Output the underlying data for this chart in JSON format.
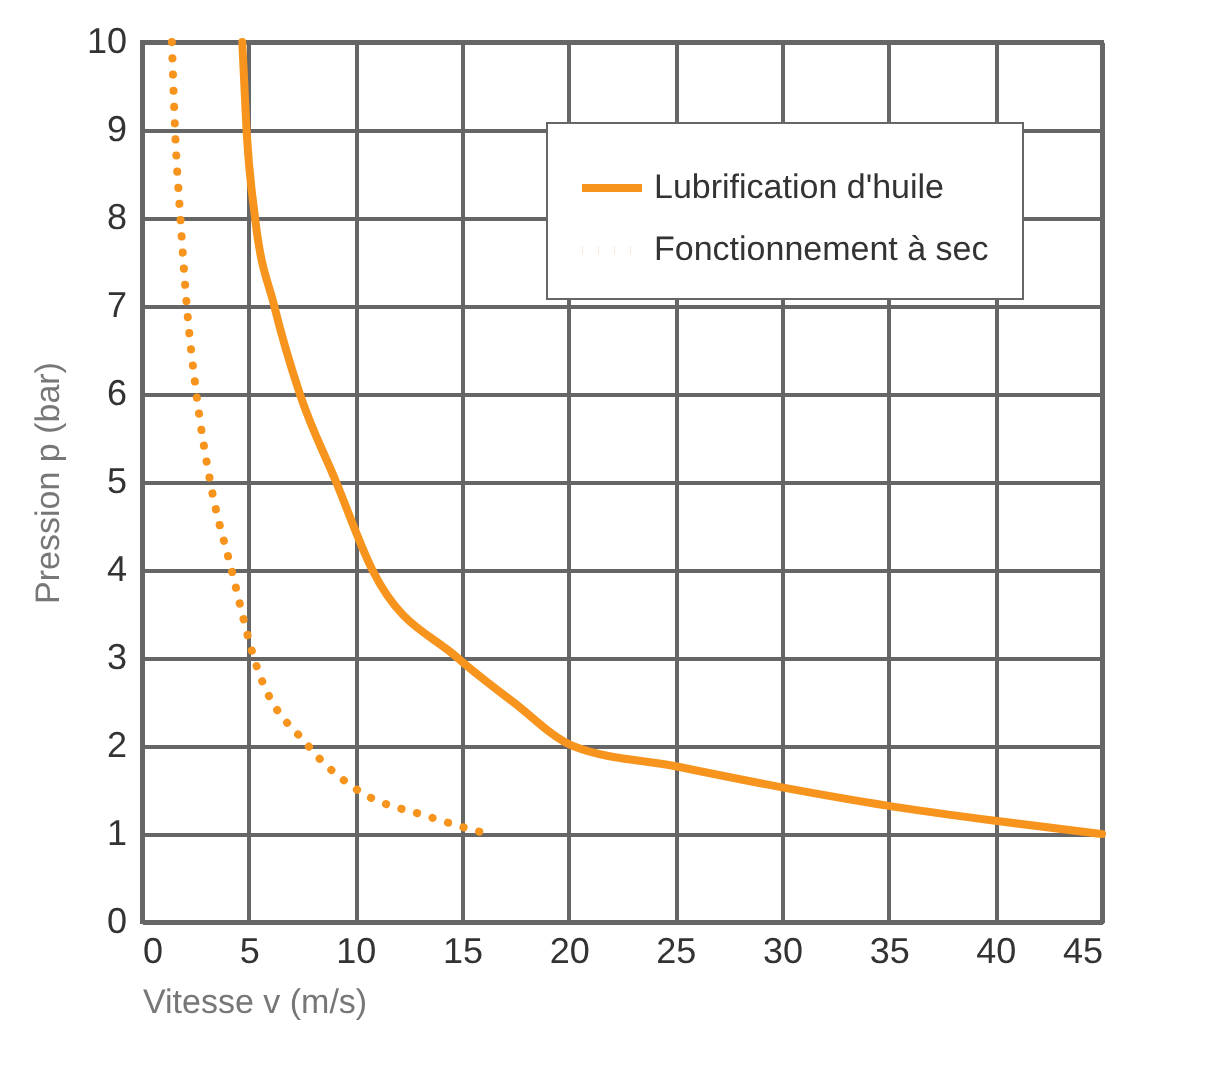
{
  "chart_data": {
    "type": "line",
    "xlabel": "Vitesse v (m/s)",
    "ylabel": "Pression p (bar)",
    "xlim": [
      0,
      45
    ],
    "xticks": [
      0,
      5,
      10,
      15,
      20,
      25,
      30,
      35,
      40,
      45
    ],
    "ylim": [
      0,
      10
    ],
    "yticks": [
      0,
      1,
      2,
      3,
      4,
      5,
      6,
      7,
      8,
      9,
      10
    ],
    "grid": true,
    "legend": "top right",
    "series": [
      {
        "name": "Lubrification d'huile",
        "color": "#f7941d",
        "line_style": "solid",
        "x": [
          4.7,
          4.9,
          5.3,
          6.2,
          7.4,
          9.1,
          10.8,
          14.8,
          17.4,
          20.2,
          25,
          30,
          35,
          40,
          45
        ],
        "values": [
          10,
          9,
          8,
          7,
          6,
          5,
          4,
          3,
          2.5,
          2,
          1.77,
          1.53,
          1.32,
          1.15,
          1.0
        ]
      },
      {
        "name": "Fonctionnement à sec",
        "color": "#f7941d",
        "line_style": "dotted",
        "x": [
          1.4,
          1.55,
          1.8,
          2.1,
          2.55,
          3.2,
          4.2,
          5.25,
          7.8,
          10.1,
          13.4,
          16.2
        ],
        "values": [
          10,
          9,
          8,
          7,
          6,
          5,
          4,
          3,
          2,
          1.5,
          1.2,
          1.0
        ]
      }
    ]
  }
}
